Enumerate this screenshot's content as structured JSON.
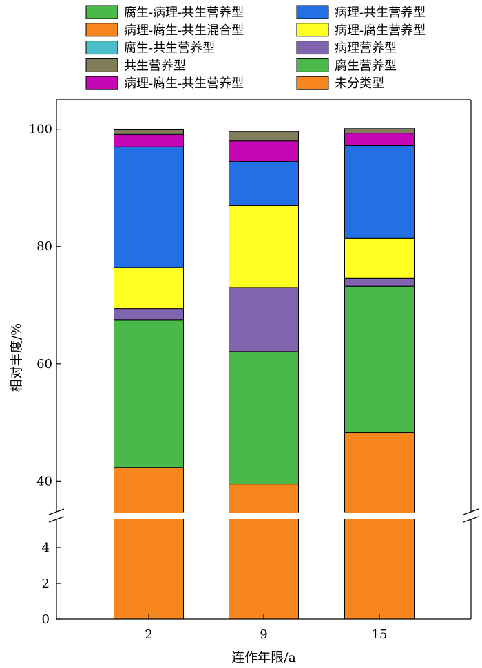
{
  "chart_data": {
    "type": "bar",
    "stacked": true,
    "broken_y_axis": true,
    "xlabel": "连作年限/a",
    "ylabel": "相对丰度/%",
    "categories": [
      "2",
      "9",
      "15"
    ],
    "upper_ylim": [
      35,
      105
    ],
    "lower_ylim": [
      0,
      5.5
    ],
    "upper_yticks": [
      40,
      60,
      80,
      100
    ],
    "lower_yticks": [
      0,
      2,
      4
    ],
    "grid": false,
    "legend_position": "top",
    "series": [
      {
        "name": "未分类型",
        "color": "#f7861d",
        "values": [
          42.3,
          39.5,
          48.3
        ]
      },
      {
        "name": "腐生营养型",
        "color": "#4bb84a",
        "values": [
          25.2,
          22.6,
          24.9
        ]
      },
      {
        "name": "腐生-病理-共生营养型",
        "color": "#4bb84a",
        "values": [
          0,
          0,
          0
        ]
      },
      {
        "name": "病理-腐生-共生混合型",
        "color": "#f7861d",
        "values": [
          0,
          0,
          0
        ]
      },
      {
        "name": "病理营养型",
        "color": "#8064ae",
        "values": [
          1.9,
          10.9,
          1.4
        ]
      },
      {
        "name": "病理-腐生营养型",
        "color": "#ffff22",
        "values": [
          7.0,
          14.0,
          6.8
        ]
      },
      {
        "name": "病理-共生营养型",
        "color": "#2370e6",
        "values": [
          20.6,
          7.5,
          15.8
        ]
      },
      {
        "name": "腐生-共生营养型",
        "color": "#4bbec8",
        "values": [
          0,
          0,
          0
        ]
      },
      {
        "name": "病理-腐生-共生营养型",
        "color": "#c607b8",
        "values": [
          2.1,
          3.5,
          2.1
        ]
      },
      {
        "name": "共生营养型",
        "color": "#807e5a",
        "values": [
          0.8,
          1.6,
          0.8
        ]
      }
    ],
    "legend": [
      {
        "name": "腐生-病理-共生营养型",
        "color": "#4bb84a"
      },
      {
        "name": "病理-共生营养型",
        "color": "#2370e6"
      },
      {
        "name": "病理-腐生-共生混合型",
        "color": "#f7861d"
      },
      {
        "name": "病理-腐生营养型",
        "color": "#ffff22"
      },
      {
        "name": "腐生-共生营养型",
        "color": "#4bbec8"
      },
      {
        "name": "病理营养型",
        "color": "#8064ae"
      },
      {
        "name": "共生营养型",
        "color": "#807e5a"
      },
      {
        "name": "腐生营养型",
        "color": "#4bb84a"
      },
      {
        "name": "病理-腐生-共生营养型",
        "color": "#c607b8"
      },
      {
        "name": "未分类型",
        "color": "#f7861d"
      }
    ]
  }
}
